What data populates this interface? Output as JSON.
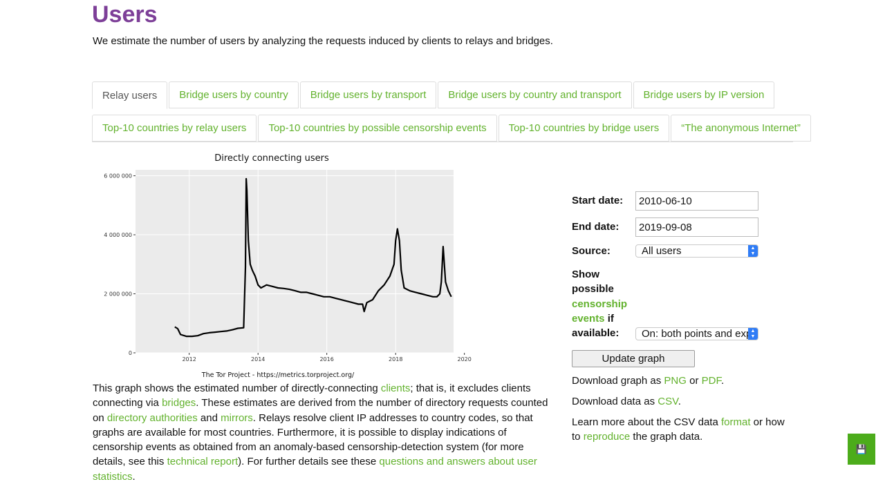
{
  "page": {
    "title": "Users",
    "intro": "We estimate the number of users by analyzing the requests induced by clients to relays and bridges."
  },
  "tabs": {
    "row1": [
      "Relay users",
      "Bridge users by country",
      "Bridge users by transport",
      "Bridge users by country and transport",
      "Bridge users by IP version"
    ],
    "row2": [
      "Top-10 countries by relay users",
      "Top-10 countries by possible censorship events",
      "Top-10 countries by bridge users",
      "“The anonymous Internet”"
    ],
    "active": "Relay users"
  },
  "chart_data": {
    "type": "line",
    "title": "Directly connecting users",
    "caption": "The Tor Project - https://metrics.torproject.org/",
    "xlabel": "",
    "ylabel": "",
    "x_ticks": [
      "2012",
      "2014",
      "2016",
      "2018",
      "2020"
    ],
    "y_ticks": [
      "0",
      "2 000 000",
      "4 000 000",
      "6 000 000"
    ],
    "xlim": [
      "2010-06-10",
      "2019-09-08"
    ],
    "ylim": [
      0,
      6200000
    ],
    "grid": true,
    "series": [
      {
        "x": [
          "2011-08-01",
          "2011-09-01",
          "2011-10-01",
          "2011-12-01",
          "2012-02-01",
          "2012-04-01",
          "2012-06-01",
          "2012-08-01",
          "2012-10-01",
          "2012-12-01",
          "2013-02-01",
          "2013-04-01",
          "2013-06-01",
          "2013-08-01",
          "2013-08-20",
          "2013-08-28",
          "2013-09-05",
          "2013-09-20",
          "2013-10-10",
          "2013-11-01",
          "2013-12-01",
          "2014-01-01",
          "2014-02-01",
          "2014-04-01",
          "2014-06-01",
          "2014-08-01",
          "2014-10-01",
          "2014-12-01",
          "2015-02-01",
          "2015-04-01",
          "2015-06-01",
          "2015-08-01",
          "2015-10-01",
          "2015-12-01",
          "2016-02-01",
          "2016-04-01",
          "2016-06-01",
          "2016-08-01",
          "2016-10-01",
          "2016-12-01",
          "2017-01-15",
          "2017-02-01",
          "2017-03-01",
          "2017-05-01",
          "2017-07-01",
          "2017-09-01",
          "2017-11-01",
          "2017-12-15",
          "2018-01-01",
          "2018-01-20",
          "2018-02-10",
          "2018-03-01",
          "2018-04-01",
          "2018-06-01",
          "2018-08-01",
          "2018-10-01",
          "2018-12-01",
          "2019-02-01",
          "2019-03-15",
          "2019-04-15",
          "2019-05-01",
          "2019-05-20",
          "2019-06-15",
          "2019-07-15",
          "2019-08-15"
        ],
        "values": [
          880000,
          820000,
          620000,
          560000,
          560000,
          580000,
          650000,
          680000,
          700000,
          720000,
          740000,
          780000,
          830000,
          850000,
          2900000,
          5900000,
          5500000,
          3800000,
          3000000,
          2800000,
          2600000,
          2300000,
          2200000,
          2300000,
          2250000,
          2200000,
          2180000,
          2150000,
          2100000,
          2050000,
          2050000,
          2000000,
          1950000,
          1900000,
          1900000,
          1850000,
          1800000,
          1750000,
          1700000,
          1650000,
          1650000,
          1400000,
          1700000,
          1800000,
          2100000,
          2300000,
          2600000,
          3000000,
          3800000,
          4200000,
          3800000,
          2800000,
          2200000,
          2100000,
          2050000,
          2000000,
          1950000,
          1900000,
          1900000,
          2000000,
          2400000,
          3600000,
          2400000,
          2100000,
          1900000
        ]
      }
    ]
  },
  "description": {
    "t1": "This graph shows the estimated number of directly-connecting ",
    "l_clients": "clients",
    "t2": "; that is, it excludes clients connecting via ",
    "l_bridges": "bridges",
    "t3": ". These estimates are derived from the number of directory requests counted on ",
    "l_dir_auth": "directory authorities",
    "t4": " and ",
    "l_mirrors": "mirrors",
    "t5": ". Relays resolve client IP addresses to country codes, so that graphs are available for most countries. Furthermore, it is possible to display indications of censorship events as obtained from an anomaly-based censorship-detection system (for more details, see this ",
    "l_tech_report": "technical report",
    "t6": "). For further details see these ",
    "l_questions": "questions and answers about user statistics",
    "t7": "."
  },
  "form": {
    "start_label": "Start date:",
    "start_value": "2010-06-10",
    "end_label": "End date:",
    "end_value": "2019-09-08",
    "source_label": "Source:",
    "source_value": "All users",
    "show_line1": "Show",
    "show_line2": "possible",
    "show_link1": "censorship",
    "show_link2": "events",
    "show_if": " if",
    "show_line5": "available:",
    "events_value": "On: both points and exp",
    "update_label": "Update graph"
  },
  "downloads": {
    "graph_text": "Download graph as ",
    "png": "PNG",
    "or": " or ",
    "pdf": "PDF",
    "period": ".",
    "data_text": "Download data as ",
    "csv": "CSV",
    "learn_text": "Learn more about the CSV data ",
    "format": "format",
    "how_to": " or how to ",
    "reproduce": "reproduce",
    "graph_data": " the graph data."
  },
  "corner": {
    "icon": "save-icon",
    "glyph": "💾"
  },
  "colors": {
    "accent": "#62b22d",
    "title": "#7d3f98",
    "plot_bg": "#ebebeb",
    "corner": "#4cac1b"
  }
}
